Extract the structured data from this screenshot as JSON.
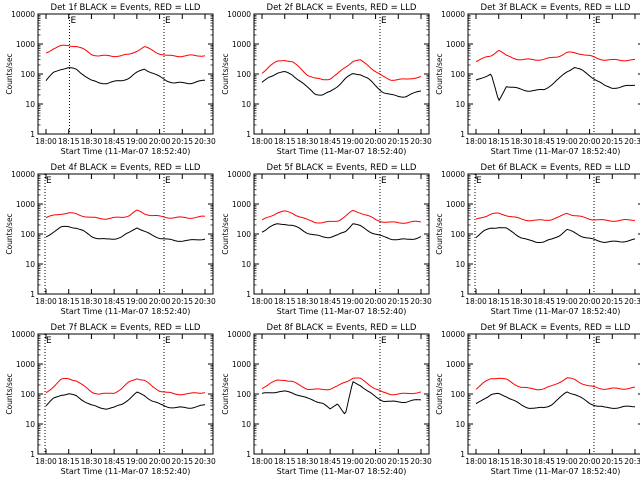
{
  "colors": {
    "events": "#000000",
    "lld": "#ff0000",
    "axes": "#000000",
    "background": "#ffffff"
  },
  "chart_data": [
    {
      "type": "line",
      "title": "Det 1f BLACK = Events, RED = LLD",
      "xlabel": "Start Time (11-Mar-07 18:52:40)",
      "ylabel": "Counts/sec",
      "x_ticks": [
        "18:00",
        "18:15",
        "18:30",
        "18:45",
        "19:00",
        "20:00",
        "20:15",
        "20:30"
      ],
      "y_ticks": [
        "1",
        "10",
        "100",
        "1000",
        "10000"
      ],
      "yscale": "log",
      "ylim": [
        1,
        10000
      ],
      "markers": [
        {
          "label": "E",
          "position": 0.18
        },
        {
          "label": "E",
          "position": 0.72
        }
      ],
      "series": [
        {
          "name": "Events",
          "color": "#000000",
          "values": [
            60,
            110,
            150,
            160,
            140,
            95,
            60,
            50,
            50,
            55,
            60,
            75,
            110,
            150,
            110,
            80,
            60,
            50,
            50,
            50,
            55,
            60
          ]
        },
        {
          "name": "LLD",
          "color": "#ff0000",
          "values": [
            500,
            720,
            850,
            900,
            850,
            650,
            460,
            400,
            400,
            400,
            410,
            440,
            600,
            800,
            620,
            480,
            400,
            400,
            400,
            410,
            410,
            420
          ]
        }
      ]
    },
    {
      "type": "line",
      "title": "Det 2f BLACK = Events, RED = LLD",
      "xlabel": "Start Time (11-Mar-07 18:52:40)",
      "ylabel": "Counts/sec",
      "x_ticks": [
        "18:00",
        "18:15",
        "18:30",
        "18:45",
        "19:00",
        "20:00",
        "20:15",
        "20:30"
      ],
      "y_ticks": [
        "1",
        "10",
        "100",
        "1000",
        "10000"
      ],
      "yscale": "log",
      "ylim": [
        1,
        10000
      ],
      "markers": [
        {
          "label": "E",
          "position": 0.72
        }
      ],
      "series": [
        {
          "name": "Events",
          "color": "#000000",
          "values": [
            50,
            80,
            110,
            115,
            95,
            60,
            35,
            22,
            20,
            25,
            40,
            70,
            100,
            100,
            70,
            40,
            25,
            20,
            18,
            18,
            22,
            28
          ]
        },
        {
          "name": "LLD",
          "color": "#ff0000",
          "values": [
            110,
            180,
            260,
            300,
            250,
            160,
            95,
            70,
            65,
            70,
            100,
            170,
            270,
            280,
            200,
            120,
            80,
            65,
            65,
            65,
            75,
            80
          ]
        }
      ]
    },
    {
      "type": "line",
      "title": "Det 3f BLACK = Events, RED = LLD",
      "xlabel": "Start Time (11-Mar-07 18:52:40)",
      "ylabel": "Counts/sec",
      "x_ticks": [
        "18:00",
        "18:15",
        "18:30",
        "18:45",
        "19:00",
        "20:00",
        "20:15",
        "20:30"
      ],
      "y_ticks": [
        "1",
        "10",
        "100",
        "1000",
        "10000"
      ],
      "yscale": "log",
      "ylim": [
        1,
        10000
      ],
      "markers": [
        {
          "label": "E",
          "position": 0.72
        }
      ],
      "series": [
        {
          "name": "Events",
          "color": "#000000",
          "values": [
            60,
            80,
            100,
            12,
            40,
            35,
            30,
            28,
            28,
            30,
            45,
            70,
            120,
            170,
            130,
            90,
            60,
            40,
            35,
            35,
            40,
            45
          ]
        },
        {
          "name": "LLD",
          "color": "#ff0000",
          "values": [
            270,
            330,
            400,
            650,
            400,
            340,
            300,
            300,
            300,
            310,
            340,
            400,
            520,
            500,
            470,
            400,
            330,
            300,
            290,
            290,
            290,
            290
          ]
        }
      ]
    },
    {
      "type": "line",
      "title": "Det 4f BLACK = Events, RED = LLD",
      "xlabel": "Start Time (11-Mar-07 18:52:40)",
      "ylabel": "Counts/sec",
      "x_ticks": [
        "18:00",
        "18:15",
        "18:30",
        "18:45",
        "19:00",
        "20:00",
        "20:15",
        "20:30"
      ],
      "y_ticks": [
        "1",
        "10",
        "100",
        "1000",
        "10000"
      ],
      "yscale": "log",
      "ylim": [
        1,
        10000
      ],
      "markers": [
        {
          "label": "E",
          "position": 0.04
        },
        {
          "label": "E",
          "position": 0.72
        }
      ],
      "series": [
        {
          "name": "Events",
          "color": "#000000",
          "values": [
            80,
            120,
            165,
            180,
            160,
            120,
            85,
            70,
            65,
            70,
            80,
            110,
            170,
            120,
            90,
            75,
            65,
            60,
            60,
            60,
            65,
            70
          ]
        },
        {
          "name": "LLD",
          "color": "#ff0000",
          "values": [
            350,
            410,
            480,
            500,
            460,
            400,
            350,
            330,
            330,
            340,
            360,
            420,
            600,
            480,
            420,
            380,
            360,
            350,
            350,
            350,
            360,
            380
          ]
        }
      ]
    },
    {
      "type": "line",
      "title": "Det 5f BLACK = Events, RED = LLD",
      "xlabel": "Start Time (11-Mar-07 18:52:40)",
      "ylabel": "Counts/sec",
      "x_ticks": [
        "18:00",
        "18:15",
        "18:30",
        "18:45",
        "19:00",
        "20:00",
        "20:15",
        "20:30"
      ],
      "y_ticks": [
        "1",
        "10",
        "100",
        "1000",
        "10000"
      ],
      "yscale": "log",
      "ylim": [
        1,
        10000
      ],
      "markers": [
        {
          "label": "E",
          "position": 0.72
        }
      ],
      "series": [
        {
          "name": "Events",
          "color": "#000000",
          "values": [
            120,
            170,
            210,
            220,
            190,
            150,
            110,
            90,
            80,
            80,
            90,
            120,
            230,
            180,
            130,
            100,
            80,
            70,
            65,
            65,
            70,
            80
          ]
        },
        {
          "name": "LLD",
          "color": "#ff0000",
          "values": [
            280,
            380,
            520,
            560,
            500,
            380,
            290,
            250,
            240,
            250,
            280,
            380,
            600,
            520,
            400,
            300,
            260,
            240,
            240,
            240,
            250,
            260
          ]
        }
      ]
    },
    {
      "type": "line",
      "title": "Det 6f BLACK = Events, RED = LLD",
      "xlabel": "Start Time (11-Mar-07 18:52:40)",
      "ylabel": "Counts/sec",
      "x_ticks": [
        "18:00",
        "18:15",
        "18:30",
        "18:45",
        "19:00",
        "20:00",
        "20:15",
        "20:30"
      ],
      "y_ticks": [
        "1",
        "10",
        "100",
        "1000",
        "10000"
      ],
      "yscale": "log",
      "ylim": [
        1,
        10000
      ],
      "markers": [
        {
          "label": "E",
          "position": 0.04
        },
        {
          "label": "E",
          "position": 0.72
        }
      ],
      "series": [
        {
          "name": "Events",
          "color": "#000000",
          "values": [
            80,
            120,
            160,
            170,
            150,
            110,
            75,
            60,
            55,
            55,
            65,
            90,
            140,
            110,
            85,
            70,
            60,
            55,
            55,
            55,
            60,
            65
          ]
        },
        {
          "name": "LLD",
          "color": "#ff0000",
          "values": [
            300,
            380,
            460,
            480,
            430,
            360,
            310,
            290,
            280,
            290,
            310,
            360,
            500,
            420,
            360,
            320,
            300,
            280,
            280,
            280,
            290,
            300
          ]
        }
      ]
    },
    {
      "type": "line",
      "title": "Det 7f BLACK = Events, RED = LLD",
      "xlabel": "Start Time (11-Mar-07 18:52:40)",
      "ylabel": "Counts/sec",
      "x_ticks": [
        "18:00",
        "18:15",
        "18:30",
        "18:45",
        "19:00",
        "20:00",
        "20:15",
        "20:30"
      ],
      "y_ticks": [
        "1",
        "10",
        "100",
        "1000",
        "10000"
      ],
      "yscale": "log",
      "ylim": [
        1,
        10000
      ],
      "markers": [
        {
          "label": "E",
          "position": 0.04
        },
        {
          "label": "E",
          "position": 0.72
        }
      ],
      "series": [
        {
          "name": "Events",
          "color": "#000000",
          "values": [
            40,
            70,
            95,
            100,
            85,
            60,
            42,
            35,
            33,
            35,
            45,
            70,
            110,
            90,
            60,
            45,
            38,
            35,
            35,
            35,
            38,
            42
          ]
        },
        {
          "name": "LLD",
          "color": "#ff0000",
          "values": [
            110,
            180,
            300,
            330,
            280,
            180,
            120,
            100,
            100,
            110,
            150,
            250,
            340,
            280,
            180,
            130,
            110,
            100,
            100,
            100,
            110,
            115
          ]
        }
      ]
    },
    {
      "type": "line",
      "title": "Det 8f BLACK = Events, RED = LLD",
      "xlabel": "Start Time (11-Mar-07 18:52:40)",
      "ylabel": "Counts/sec",
      "x_ticks": [
        "18:00",
        "18:15",
        "18:30",
        "18:45",
        "19:00",
        "20:00",
        "20:15",
        "20:30"
      ],
      "y_ticks": [
        "1",
        "10",
        "100",
        "1000",
        "10000"
      ],
      "yscale": "log",
      "ylim": [
        1,
        10000
      ],
      "markers": [
        {
          "label": "E",
          "position": 0.72
        }
      ],
      "series": [
        {
          "name": "Events",
          "color": "#000000",
          "values": [
            100,
            110,
            120,
            120,
            110,
            90,
            70,
            60,
            50,
            30,
            50,
            20,
            250,
            200,
            120,
            80,
            60,
            55,
            55,
            55,
            60,
            65
          ]
        },
        {
          "name": "LLD",
          "color": "#ff0000",
          "values": [
            160,
            220,
            280,
            300,
            260,
            190,
            150,
            140,
            140,
            150,
            180,
            250,
            350,
            320,
            220,
            150,
            110,
            100,
            100,
            100,
            110,
            115
          ]
        }
      ]
    },
    {
      "type": "line",
      "title": "Det 9f BLACK = Events, RED = LLD",
      "xlabel": "Start Time (11-Mar-07 18:52:40)",
      "ylabel": "Counts/sec",
      "x_ticks": [
        "18:00",
        "18:15",
        "18:30",
        "18:45",
        "19:00",
        "20:00",
        "20:15",
        "20:30"
      ],
      "y_ticks": [
        "1",
        "10",
        "100",
        "1000",
        "10000"
      ],
      "yscale": "log",
      "ylim": [
        1,
        10000
      ],
      "markers": [
        {
          "label": "E",
          "position": 0.72
        }
      ],
      "series": [
        {
          "name": "Events",
          "color": "#000000",
          "values": [
            45,
            70,
            95,
            100,
            85,
            60,
            42,
            35,
            33,
            35,
            45,
            70,
            120,
            100,
            70,
            50,
            40,
            35,
            35,
            35,
            38,
            40
          ]
        },
        {
          "name": "LLD",
          "color": "#ff0000",
          "values": [
            150,
            230,
            330,
            350,
            300,
            220,
            170,
            150,
            145,
            150,
            180,
            250,
            340,
            300,
            230,
            180,
            160,
            150,
            150,
            150,
            155,
            160
          ]
        }
      ]
    }
  ]
}
